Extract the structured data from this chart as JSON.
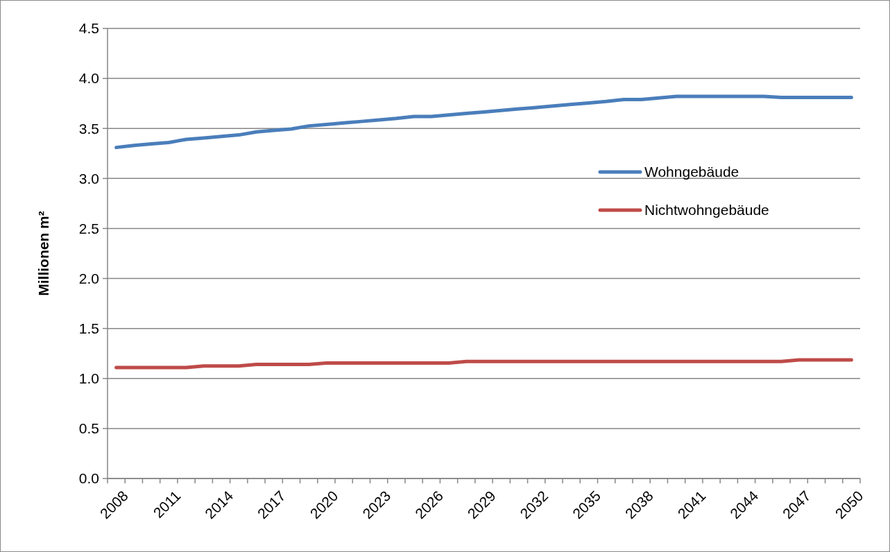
{
  "chart_data": {
    "type": "line",
    "ylabel": "Millionen m²",
    "categories": [
      "2008",
      null,
      null,
      "2011",
      null,
      null,
      "2014",
      null,
      null,
      "2017",
      null,
      null,
      "2020",
      null,
      null,
      "2023",
      null,
      null,
      "2026",
      null,
      null,
      "2029",
      null,
      null,
      "2032",
      null,
      null,
      "2035",
      null,
      null,
      "2038",
      null,
      null,
      "2041",
      null,
      null,
      "2044",
      null,
      null,
      "2047",
      null,
      null,
      "2050"
    ],
    "series": [
      {
        "name": "Wohngebäude",
        "color": "#4a7ebb",
        "values": [
          3.31,
          3.33,
          3.345,
          3.36,
          3.39,
          3.405,
          3.42,
          3.435,
          3.465,
          3.48,
          3.495,
          3.525,
          3.54,
          3.555,
          3.57,
          3.585,
          3.6,
          3.62,
          3.62,
          3.635,
          3.65,
          3.665,
          3.68,
          3.695,
          3.71,
          3.725,
          3.74,
          3.755,
          3.77,
          3.79,
          3.79,
          3.805,
          3.82,
          3.82,
          3.82,
          3.82,
          3.82,
          3.82,
          3.81,
          3.81,
          3.81,
          3.81,
          3.81
        ]
      },
      {
        "name": "Nichtwohngebäude",
        "color": "#be4b48",
        "values": [
          1.11,
          1.11,
          1.11,
          1.11,
          1.11,
          1.125,
          1.125,
          1.125,
          1.14,
          1.14,
          1.14,
          1.14,
          1.155,
          1.155,
          1.155,
          1.155,
          1.155,
          1.155,
          1.155,
          1.155,
          1.17,
          1.17,
          1.17,
          1.17,
          1.17,
          1.17,
          1.17,
          1.17,
          1.17,
          1.17,
          1.17,
          1.17,
          1.17,
          1.17,
          1.17,
          1.17,
          1.17,
          1.17,
          1.17,
          1.185,
          1.185,
          1.185,
          1.185
        ]
      }
    ],
    "ylim": [
      0,
      4.5
    ],
    "yticks": [
      {
        "value": 0,
        "label": "0.0"
      },
      {
        "value": 0.5,
        "label": "0.5"
      },
      {
        "value": 1,
        "label": "1.0"
      },
      {
        "value": 1.5,
        "label": "1.5"
      },
      {
        "value": 2,
        "label": "2.0"
      },
      {
        "value": 2.5,
        "label": "2.5"
      },
      {
        "value": 3,
        "label": "3.0"
      },
      {
        "value": 3.5,
        "label": "3.5"
      },
      {
        "value": 4,
        "label": "4.0"
      },
      {
        "value": 4.5,
        "label": "4.5"
      }
    ],
    "grid": "y",
    "legend": "right",
    "marker": "none",
    "line_style": "solid"
  }
}
